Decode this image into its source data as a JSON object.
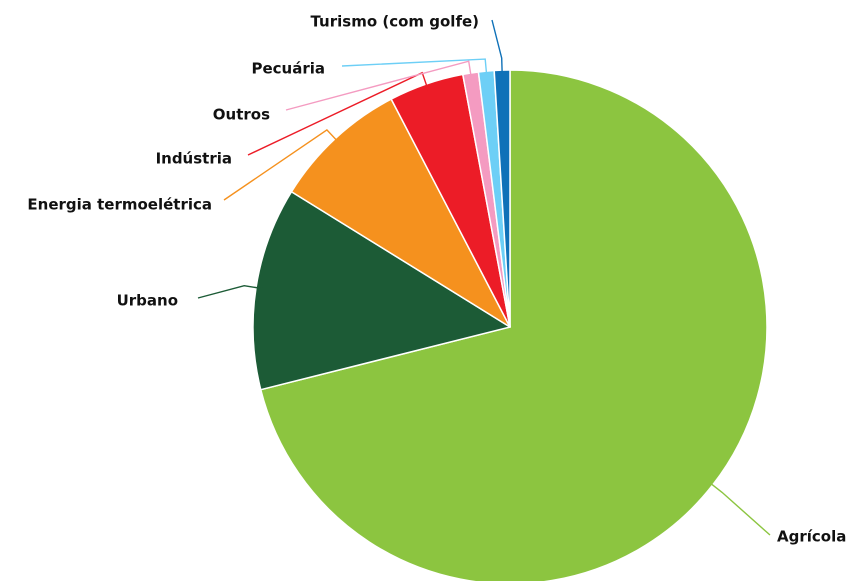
{
  "chart_data": {
    "type": "pie",
    "slices": [
      {
        "label": "Agrícola",
        "value": 72.5,
        "color": "#8cc540"
      },
      {
        "label": "Urbano",
        "value": 13.0,
        "color": "#1c5b36"
      },
      {
        "label": "Energia termoelétrica",
        "value": 8.7,
        "color": "#f5911e"
      },
      {
        "label": "Indústria",
        "value": 4.8,
        "color": "#ec1c27"
      },
      {
        "label": "Outros",
        "value": 1.0,
        "color": "#f49bc1"
      },
      {
        "label": "Pecuária",
        "value": 1.0,
        "color": "#6dcff6"
      },
      {
        "label": "Turismo (com golfe)",
        "value": 1.0,
        "color": "#0f71b8"
      }
    ],
    "legend": "none",
    "labels": "outside with leader lines"
  }
}
